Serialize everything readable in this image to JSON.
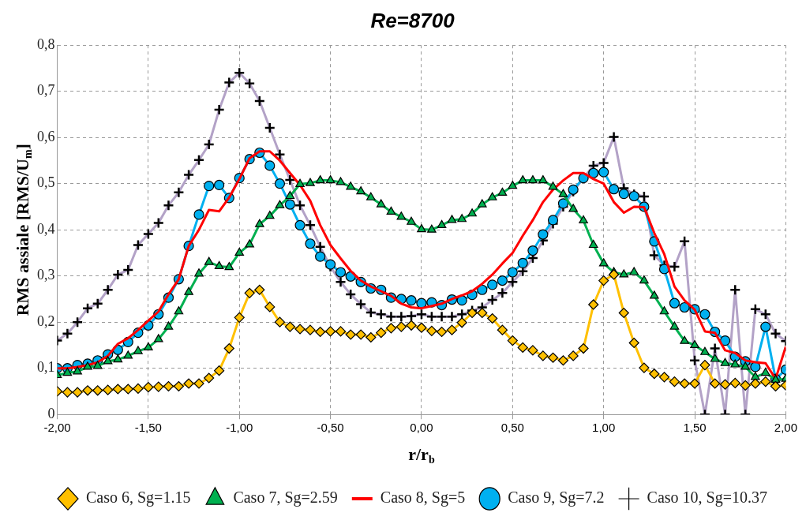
{
  "chart_data": {
    "type": "line",
    "title": "Re=8700",
    "xlabel": "r/r$_{b}$",
    "ylabel": "RMS assiale [RMS/U$_{m}$]",
    "x": [
      -2,
      -1.944,
      -1.889,
      -1.833,
      -1.778,
      -1.722,
      -1.667,
      -1.611,
      -1.556,
      -1.5,
      -1.444,
      -1.389,
      -1.333,
      -1.278,
      -1.222,
      -1.167,
      -1.111,
      -1.056,
      -1,
      -0.944,
      -0.889,
      -0.833,
      -0.778,
      -0.722,
      -0.667,
      -0.611,
      -0.556,
      -0.5,
      -0.444,
      -0.389,
      -0.333,
      -0.278,
      -0.222,
      -0.167,
      -0.111,
      -0.056,
      0,
      0.056,
      0.111,
      0.167,
      0.222,
      0.278,
      0.333,
      0.389,
      0.444,
      0.5,
      0.556,
      0.611,
      0.667,
      0.722,
      0.778,
      0.833,
      0.889,
      0.944,
      1,
      1.056,
      1.111,
      1.167,
      1.222,
      1.278,
      1.333,
      1.389,
      1.444,
      1.5,
      1.556,
      1.611,
      1.667,
      1.722,
      1.778,
      1.833,
      1.889,
      1.944,
      2
    ],
    "series": [
      {
        "name": "Caso 6, Sg=1.15",
        "color": "#ffc000",
        "marker": "diamond",
        "values": [
          0.05,
          0.048,
          0.048,
          0.052,
          0.052,
          0.053,
          0.055,
          0.055,
          0.056,
          0.059,
          0.06,
          0.061,
          0.061,
          0.067,
          0.067,
          0.079,
          0.095,
          0.143,
          0.21,
          0.263,
          0.27,
          0.233,
          0.2,
          0.19,
          0.185,
          0.183,
          0.179,
          0.18,
          0.18,
          0.173,
          0.173,
          0.167,
          0.177,
          0.187,
          0.19,
          0.193,
          0.188,
          0.181,
          0.179,
          0.183,
          0.199,
          0.22,
          0.22,
          0.208,
          0.183,
          0.16,
          0.145,
          0.139,
          0.127,
          0.123,
          0.117,
          0.127,
          0.143,
          0.238,
          0.29,
          0.303,
          0.22,
          0.155,
          0.101,
          0.088,
          0.081,
          0.071,
          0.067,
          0.067,
          0.107,
          0.067,
          0.065,
          0.068,
          0.063,
          0.067,
          0.071,
          0.061,
          0.063
        ]
      },
      {
        "name": "Caso 7, Sg=2.59",
        "color": "#00b050",
        "marker": "triangle",
        "values": [
          0.085,
          0.09,
          0.093,
          0.103,
          0.105,
          0.115,
          0.119,
          0.127,
          0.137,
          0.145,
          0.163,
          0.19,
          0.223,
          0.265,
          0.305,
          0.33,
          0.321,
          0.319,
          0.35,
          0.368,
          0.412,
          0.43,
          0.453,
          0.473,
          0.499,
          0.501,
          0.507,
          0.507,
          0.503,
          0.493,
          0.483,
          0.47,
          0.455,
          0.439,
          0.428,
          0.417,
          0.401,
          0.4,
          0.41,
          0.421,
          0.423,
          0.435,
          0.455,
          0.47,
          0.48,
          0.495,
          0.507,
          0.507,
          0.507,
          0.493,
          0.477,
          0.445,
          0.42,
          0.367,
          0.327,
          0.308,
          0.303,
          0.308,
          0.29,
          0.257,
          0.223,
          0.19,
          0.159,
          0.15,
          0.135,
          0.12,
          0.111,
          0.108,
          0.103,
          0.081,
          0.09,
          0.075,
          0.077
        ]
      },
      {
        "name": "Caso 8, Sg=5",
        "color": "#ff0000",
        "marker": "none",
        "values": [
          0.1,
          0.1,
          0.103,
          0.107,
          0.113,
          0.127,
          0.153,
          0.165,
          0.183,
          0.203,
          0.223,
          0.26,
          0.293,
          0.365,
          0.4,
          0.443,
          0.44,
          0.47,
          0.51,
          0.555,
          0.57,
          0.57,
          0.55,
          0.523,
          0.497,
          0.463,
          0.41,
          0.367,
          0.338,
          0.311,
          0.29,
          0.277,
          0.267,
          0.257,
          0.24,
          0.232,
          0.23,
          0.235,
          0.24,
          0.25,
          0.258,
          0.267,
          0.283,
          0.303,
          0.327,
          0.35,
          0.387,
          0.421,
          0.46,
          0.487,
          0.507,
          0.523,
          0.523,
          0.51,
          0.5,
          0.46,
          0.437,
          0.45,
          0.449,
          0.393,
          0.347,
          0.277,
          0.247,
          0.227,
          0.18,
          0.177,
          0.139,
          0.133,
          0.117,
          0.113,
          0.111,
          0.077,
          0.147
        ]
      },
      {
        "name": "Caso 9, Sg=7.2",
        "color": "#00b0f0",
        "marker": "circle",
        "values": [
          0.1,
          0.1,
          0.107,
          0.11,
          0.117,
          0.13,
          0.14,
          0.157,
          0.177,
          0.193,
          0.217,
          0.253,
          0.293,
          0.365,
          0.433,
          0.495,
          0.497,
          0.469,
          0.512,
          0.553,
          0.567,
          0.539,
          0.5,
          0.455,
          0.41,
          0.37,
          0.342,
          0.325,
          0.308,
          0.299,
          0.287,
          0.273,
          0.27,
          0.253,
          0.25,
          0.247,
          0.241,
          0.243,
          0.237,
          0.249,
          0.247,
          0.259,
          0.27,
          0.281,
          0.29,
          0.308,
          0.328,
          0.355,
          0.39,
          0.421,
          0.457,
          0.487,
          0.512,
          0.523,
          0.525,
          0.488,
          0.478,
          0.473,
          0.45,
          0.375,
          0.315,
          0.241,
          0.232,
          0.228,
          0.217,
          0.179,
          0.16,
          0.125,
          0.115,
          0.103,
          0.19,
          0.077,
          0.097
        ]
      },
      {
        "name": "Caso 10, Sg=10.37",
        "color": "#b3a2c7",
        "marker": "cross",
        "values": [
          0.16,
          0.175,
          0.2,
          0.23,
          0.24,
          0.27,
          0.303,
          0.313,
          0.367,
          0.391,
          0.415,
          0.453,
          0.481,
          0.519,
          0.551,
          0.585,
          0.66,
          0.719,
          0.74,
          0.717,
          0.679,
          0.621,
          0.563,
          0.508,
          0.453,
          0.41,
          0.363,
          0.32,
          0.287,
          0.26,
          0.239,
          0.221,
          0.217,
          0.212,
          0.212,
          0.213,
          0.217,
          0.212,
          0.212,
          0.212,
          0.217,
          0.225,
          0.232,
          0.248,
          0.263,
          0.287,
          0.31,
          0.339,
          0.377,
          0.413,
          0.45,
          0.483,
          0.512,
          0.539,
          0.545,
          0.601,
          0.49,
          0.477,
          0.472,
          0.345,
          0.323,
          0.32,
          0.375,
          0.117,
          0,
          0.143,
          0,
          0.27,
          0,
          0.228,
          0.217,
          0.175,
          0.159
        ]
      }
    ],
    "xlim": [
      -2,
      2
    ],
    "xticks": [
      {
        "value": -2,
        "label": "-2,00"
      },
      {
        "value": -1.5,
        "label": "-1,50"
      },
      {
        "value": -1,
        "label": "-1,00"
      },
      {
        "value": -0.5,
        "label": "-0,50"
      },
      {
        "value": 0,
        "label": "0,00"
      },
      {
        "value": 0.5,
        "label": "0,50"
      },
      {
        "value": 1,
        "label": "1,00"
      },
      {
        "value": 1.5,
        "label": "1,50"
      },
      {
        "value": 2,
        "label": "2,00"
      }
    ],
    "ylim": [
      0,
      0.8
    ],
    "yticks": [
      0,
      {
        "value": 0.1,
        "label": "0,1"
      },
      {
        "value": 0.2,
        "label": "0,2"
      },
      {
        "value": 0.3,
        "label": "0,3"
      },
      {
        "value": 0.4,
        "label": "0,4"
      },
      {
        "value": 0.5,
        "label": "0,5"
      },
      {
        "value": 0.6,
        "label": "0,6"
      },
      {
        "value": 0.7,
        "label": "0,7"
      },
      {
        "value": 0.8,
        "label": "0,8"
      }
    ],
    "grid": true,
    "legend": "bottom",
    "line_style": "solid"
  }
}
